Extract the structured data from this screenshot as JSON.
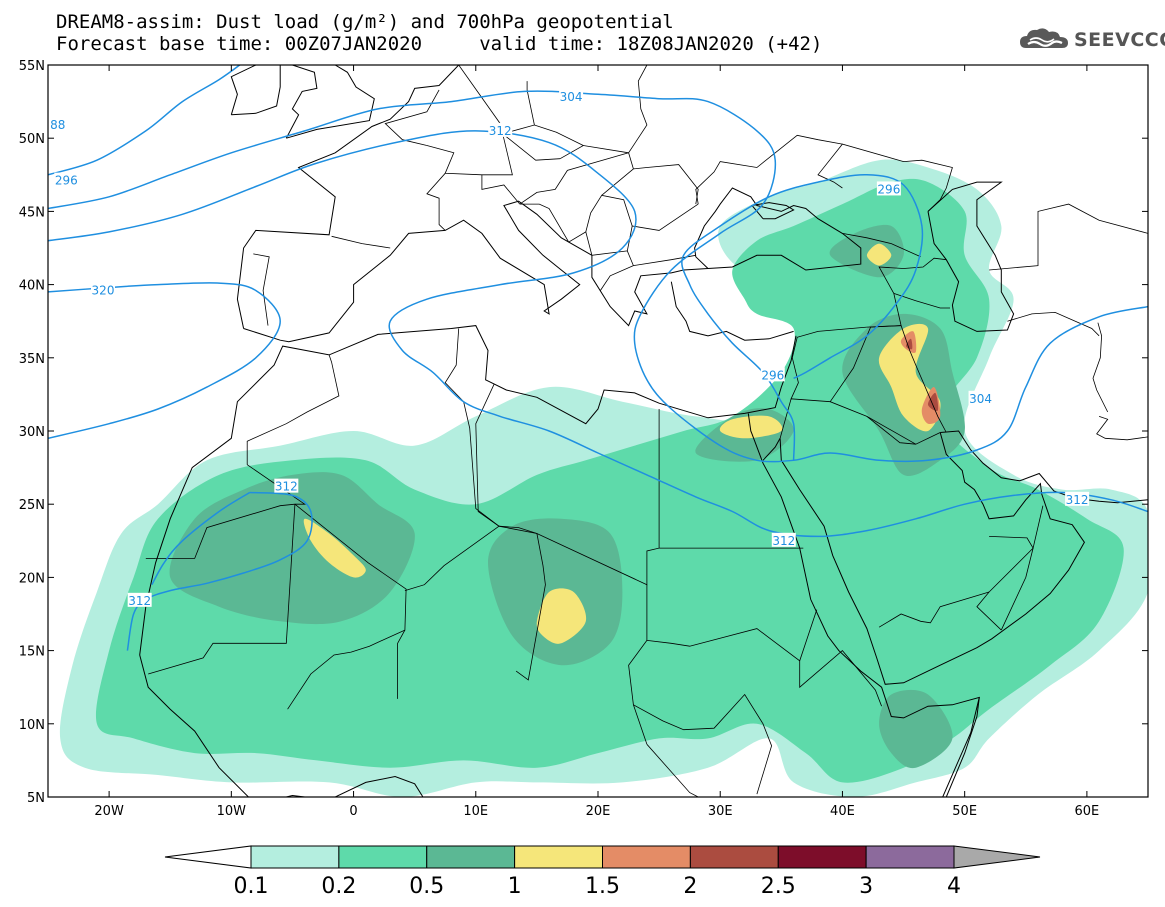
{
  "header": {
    "title_line1": "DREAM8-assim: Dust load (g/m²) and 700hPa geopotential",
    "title_line2": "Forecast base time: 00Z07JAN2020     valid time: 18Z08JAN2020 (+42)",
    "logo_text": "SEEVCCC",
    "logo_icon": "cloud-icon"
  },
  "map": {
    "lon_range": [
      -25,
      65
    ],
    "lat_range": [
      5,
      55
    ],
    "lat_ticks": [
      {
        "value": 55,
        "label": "55N"
      },
      {
        "value": 50,
        "label": "50N"
      },
      {
        "value": 45,
        "label": "45N"
      },
      {
        "value": 40,
        "label": "40N"
      },
      {
        "value": 35,
        "label": "35N"
      },
      {
        "value": 30,
        "label": "30N"
      },
      {
        "value": 25,
        "label": "25N"
      },
      {
        "value": 20,
        "label": "20N"
      },
      {
        "value": 15,
        "label": "15N"
      },
      {
        "value": 10,
        "label": "10N"
      },
      {
        "value": 5,
        "label": "5N"
      }
    ],
    "lon_ticks": [
      {
        "value": -20,
        "label": "20W"
      },
      {
        "value": -10,
        "label": "10W"
      },
      {
        "value": 0,
        "label": "0"
      },
      {
        "value": 10,
        "label": "10E"
      },
      {
        "value": 20,
        "label": "20E"
      },
      {
        "value": 30,
        "label": "30E"
      },
      {
        "value": 40,
        "label": "40E"
      },
      {
        "value": 50,
        "label": "50E"
      },
      {
        "value": 60,
        "label": "60E"
      }
    ],
    "contour_color": "#1f8fe0",
    "contour_labels": [
      {
        "text": "304",
        "lon": 17.8,
        "lat": 52.8
      },
      {
        "text": "312",
        "lon": 12.0,
        "lat": 50.5
      },
      {
        "text": "296",
        "lon": 43.8,
        "lat": 46.5
      },
      {
        "text": "296",
        "lon": -23.5,
        "lat": 47.1
      },
      {
        "text": "320",
        "lon": -20.5,
        "lat": 39.6
      },
      {
        "text": "296",
        "lon": 34.3,
        "lat": 33.8
      },
      {
        "text": "304",
        "lon": 51.3,
        "lat": 32.2
      },
      {
        "text": "312",
        "lon": -5.5,
        "lat": 26.2
      },
      {
        "text": "312",
        "lon": 59.2,
        "lat": 25.3
      },
      {
        "text": "312",
        "lon": 35.2,
        "lat": 22.5
      },
      {
        "text": "312",
        "lon": -17.5,
        "lat": 18.4
      },
      {
        "text": "88",
        "lon": -24.2,
        "lat": 50.9
      }
    ],
    "dust_levels": [
      {
        "level": 0.1,
        "color": "#b4eedf"
      },
      {
        "level": 0.2,
        "color": "#5edaaa"
      },
      {
        "level": 0.5,
        "color": "#5bb894"
      },
      {
        "level": 1,
        "color": "#f5e67a"
      },
      {
        "level": 1.5,
        "color": "#e48c66"
      },
      {
        "level": 2,
        "color": "#ab4c40"
      }
    ]
  },
  "colorbar": {
    "colors": [
      "#ffffff",
      "#b4eedf",
      "#5edaaa",
      "#5bb894",
      "#f5e67a",
      "#e48c66",
      "#ab4c40",
      "#7d0d2a",
      "#8c6a9c",
      "#a9a9a9"
    ],
    "labels": [
      "0.1",
      "0.2",
      "0.5",
      "1",
      "1.5",
      "2",
      "2.5",
      "3",
      "4"
    ]
  }
}
